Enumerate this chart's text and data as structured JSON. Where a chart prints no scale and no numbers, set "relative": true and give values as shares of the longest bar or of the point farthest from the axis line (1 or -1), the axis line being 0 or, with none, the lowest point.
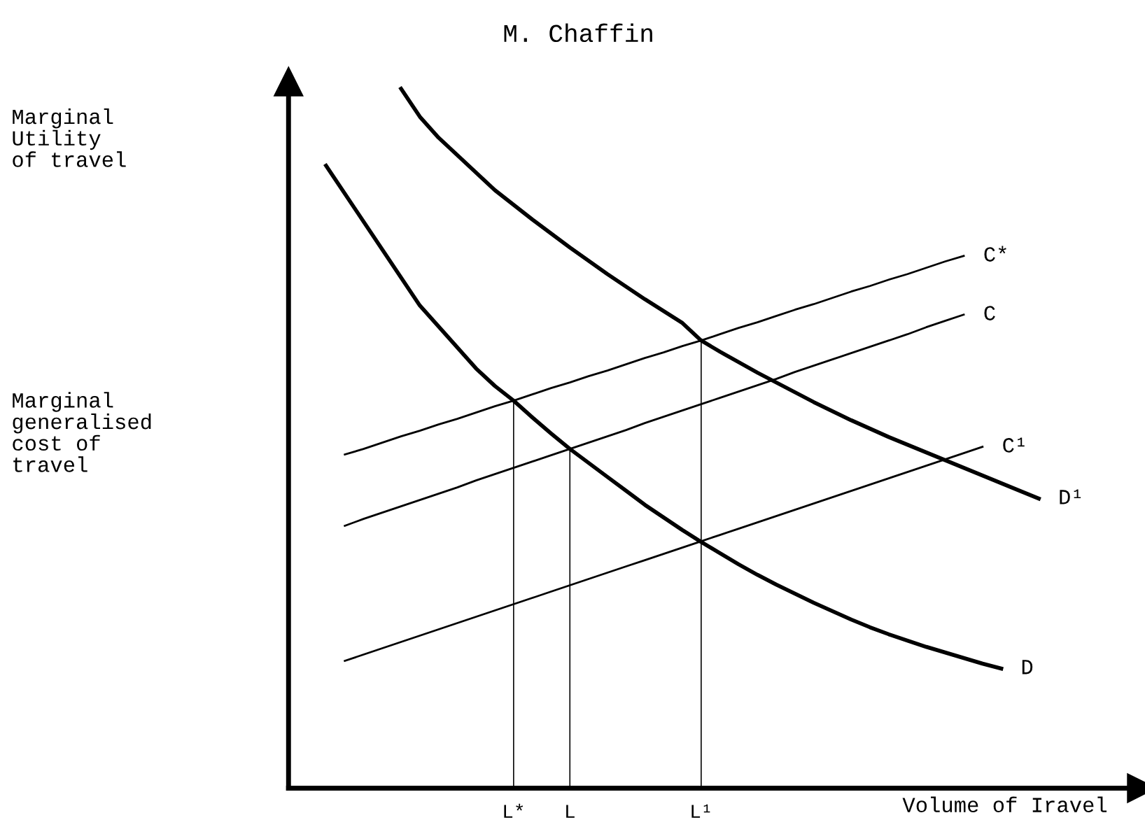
{
  "chart_data": {
    "type": "line",
    "title": "M. Chaffin",
    "xlabel": "Volume of Iravel",
    "annotations": [
      "Marginal\nUtility\nof travel",
      "Marginal\ngeneralised\ncost of\ntravel"
    ],
    "relative": true,
    "tick_labels": "x",
    "legend": false,
    "marker": "none",
    "line_style": "solid",
    "categories": [
      null,
      null,
      null,
      null,
      null,
      null,
      null,
      null,
      null,
      null,
      null,
      null,
      "L*",
      null,
      null,
      "L",
      null,
      null,
      null,
      null,
      null,
      null,
      "L¹",
      null,
      null,
      null,
      null,
      null,
      null,
      null,
      null,
      null,
      null,
      null,
      null,
      null,
      null,
      null,
      null,
      null,
      null
    ],
    "series": [
      {
        "name": "D¹",
        "color": "#000000",
        "values": [
          null,
          null,
          null,
          null,
          null,
          null,
          1.0,
          0.96,
          0.93,
          0.905,
          0.88,
          0.855,
          0.834,
          0.813,
          0.793,
          0.773,
          0.754,
          0.735,
          0.717,
          0.699,
          0.682,
          0.665,
          0.64,
          0.624,
          0.609,
          0.594,
          0.58,
          0.566,
          0.552,
          0.539,
          0.526,
          0.514,
          0.502,
          0.491,
          0.48,
          0.469,
          0.458,
          0.447,
          0.436,
          0.425,
          0.414
        ]
      },
      {
        "name": "D",
        "color": "#000000",
        "values": [
          null,
          null,
          0.89,
          0.85,
          0.81,
          0.77,
          0.73,
          0.69,
          0.66,
          0.63,
          0.6,
          0.575,
          0.554,
          0.53,
          0.507,
          0.485,
          0.465,
          0.445,
          0.425,
          0.405,
          0.387,
          0.369,
          0.352,
          0.336,
          0.32,
          0.305,
          0.291,
          0.278,
          0.265,
          0.253,
          0.241,
          0.23,
          0.22,
          0.211,
          0.202,
          0.194,
          0.186,
          0.178,
          0.171,
          null,
          null
        ]
      },
      {
        "name": "C*",
        "color": "#000000",
        "values": [
          null,
          null,
          null,
          0.477,
          0.485,
          0.494,
          0.503,
          0.511,
          0.52,
          0.528,
          0.537,
          0.546,
          0.554,
          0.563,
          0.572,
          0.58,
          0.589,
          0.597,
          0.606,
          0.615,
          0.623,
          0.632,
          0.64,
          0.649,
          0.658,
          0.666,
          0.675,
          0.684,
          0.692,
          0.701,
          0.71,
          0.718,
          0.727,
          0.735,
          0.744,
          0.753,
          0.761,
          null,
          null,
          null,
          null
        ]
      },
      {
        "name": "C",
        "color": "#000000",
        "values": [
          null,
          null,
          null,
          0.375,
          0.385,
          0.394,
          0.403,
          0.412,
          0.421,
          0.43,
          0.44,
          0.449,
          0.458,
          0.467,
          0.476,
          0.485,
          0.494,
          0.503,
          0.512,
          0.522,
          0.531,
          0.54,
          0.549,
          0.558,
          0.567,
          0.576,
          0.585,
          0.595,
          0.604,
          0.613,
          0.622,
          0.631,
          0.64,
          0.649,
          0.659,
          0.668,
          0.677,
          null,
          null,
          null,
          null
        ]
      },
      {
        "name": "C¹",
        "color": "#000000",
        "values": [
          null,
          null,
          null,
          0.182,
          0.191,
          0.2,
          0.209,
          0.218,
          0.227,
          0.236,
          0.245,
          0.254,
          0.263,
          0.272,
          0.281,
          0.29,
          0.299,
          0.308,
          0.317,
          0.326,
          0.335,
          0.344,
          0.353,
          0.362,
          0.371,
          0.38,
          0.389,
          0.398,
          0.407,
          0.416,
          0.425,
          0.434,
          0.443,
          0.452,
          0.461,
          0.47,
          0.479,
          0.488,
          null,
          null,
          null
        ]
      },
      {
        "type": "bar",
        "color": "#000000",
        "values": [
          null,
          null,
          null,
          null,
          null,
          null,
          null,
          null,
          null,
          null,
          null,
          null,
          0.554,
          null,
          null,
          0.485,
          null,
          null,
          null,
          null,
          null,
          null,
          0.64,
          null,
          null,
          null,
          null,
          null,
          null,
          null,
          null,
          null,
          null,
          null,
          null,
          null,
          null,
          null,
          null,
          null,
          null
        ]
      }
    ]
  }
}
